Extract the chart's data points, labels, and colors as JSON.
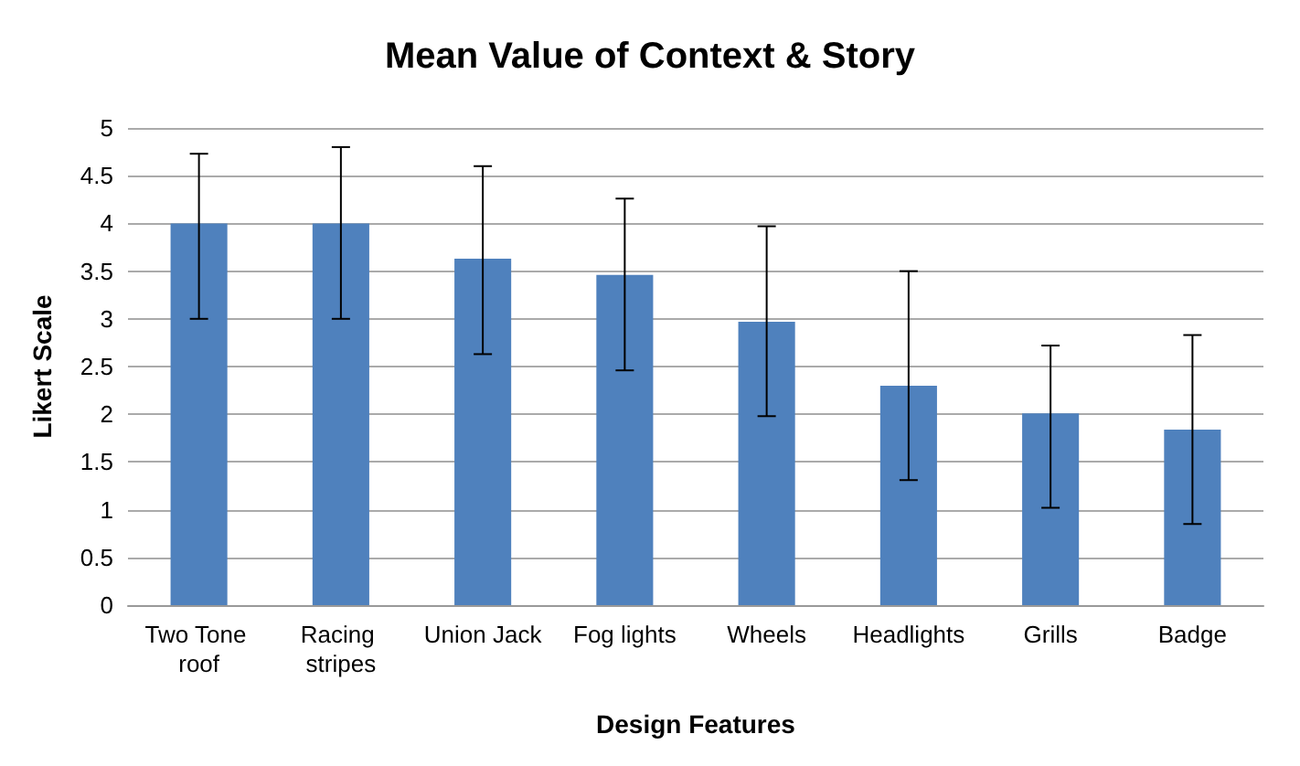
{
  "chart_data": {
    "type": "bar",
    "title": "Mean Value of Context & Story",
    "xlabel": "Design Features",
    "ylabel": "Likert Scale",
    "categories": [
      "Two Tone roof",
      "Racing stripes",
      "Union Jack",
      "Fog lights",
      "Wheels",
      "Headlights",
      "Grills",
      "Badge"
    ],
    "values": [
      4.0,
      4.0,
      3.63,
      3.46,
      2.97,
      2.3,
      2.01,
      1.84
    ],
    "errors": [
      [
        3.0,
        4.73
      ],
      [
        3.0,
        4.8
      ],
      [
        2.63,
        4.6
      ],
      [
        2.46,
        4.26
      ],
      [
        1.98,
        3.97
      ],
      [
        1.31,
        3.5
      ],
      [
        1.02,
        2.72
      ],
      [
        0.85,
        2.83
      ]
    ],
    "color": "#4f81bd",
    "ylim": [
      0,
      5
    ],
    "yticks": [
      0,
      0.5,
      1,
      1.5,
      2,
      2.5,
      3,
      3.5,
      4,
      4.5,
      5
    ],
    "grid": "y"
  }
}
